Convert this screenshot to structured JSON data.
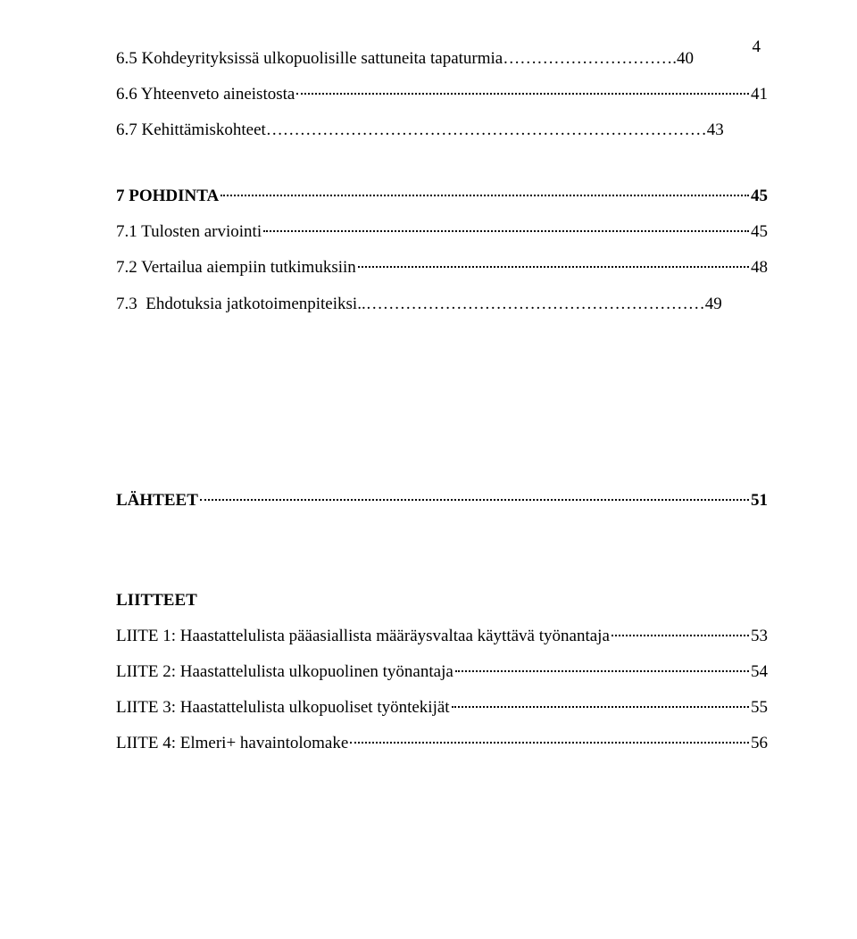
{
  "page_number": "4",
  "lines": [
    {
      "label": "6.5 Kohdeyrityksissä ulkopuolisille sattuneita tapaturmia………………………….40",
      "page": "",
      "bold": false,
      "nodots": true
    },
    {
      "label": "6.6 Yhteenveto aineistosta",
      "page": "41",
      "bold": false
    },
    {
      "label": "6.7 Kehittämiskohteet……………………………………………………………………43",
      "page": "",
      "bold": false,
      "nodots": true
    }
  ],
  "lines2": [
    {
      "label": "7 POHDINTA",
      "page": "45",
      "bold": true
    },
    {
      "label": "7.1 Tulosten arviointi",
      "page": "45",
      "bold": false
    },
    {
      "label": "7.2 Vertailua aiempiin tutkimuksiin",
      "page": "48",
      "bold": false
    },
    {
      "label": "7.3  Ehdotuksia jatkotoimenpiteiksi..……………………………………………………49",
      "page": "",
      "bold": false,
      "nodots": true
    }
  ],
  "lines3": [
    {
      "label": "LÄHTEET",
      "page": "51",
      "bold": true
    }
  ],
  "lines4": [
    {
      "label": "LIITTEET",
      "page": "",
      "bold": true,
      "nodots": true
    },
    {
      "label": "LIITE 1: Haastattelulista pääasiallista määräysvaltaa käyttävä työnantaja",
      "page": "53",
      "bold": false
    },
    {
      "label": "LIITE 2: Haastattelulista ulkopuolinen työnantaja",
      "page": "54",
      "bold": false
    },
    {
      "label": "LIITE 3: Haastattelulista ulkopuoliset työntekijät",
      "page": "55",
      "bold": false
    },
    {
      "label": "LIITE 4: Elmeri+ havaintolomake",
      "page": "56",
      "bold": false
    }
  ]
}
